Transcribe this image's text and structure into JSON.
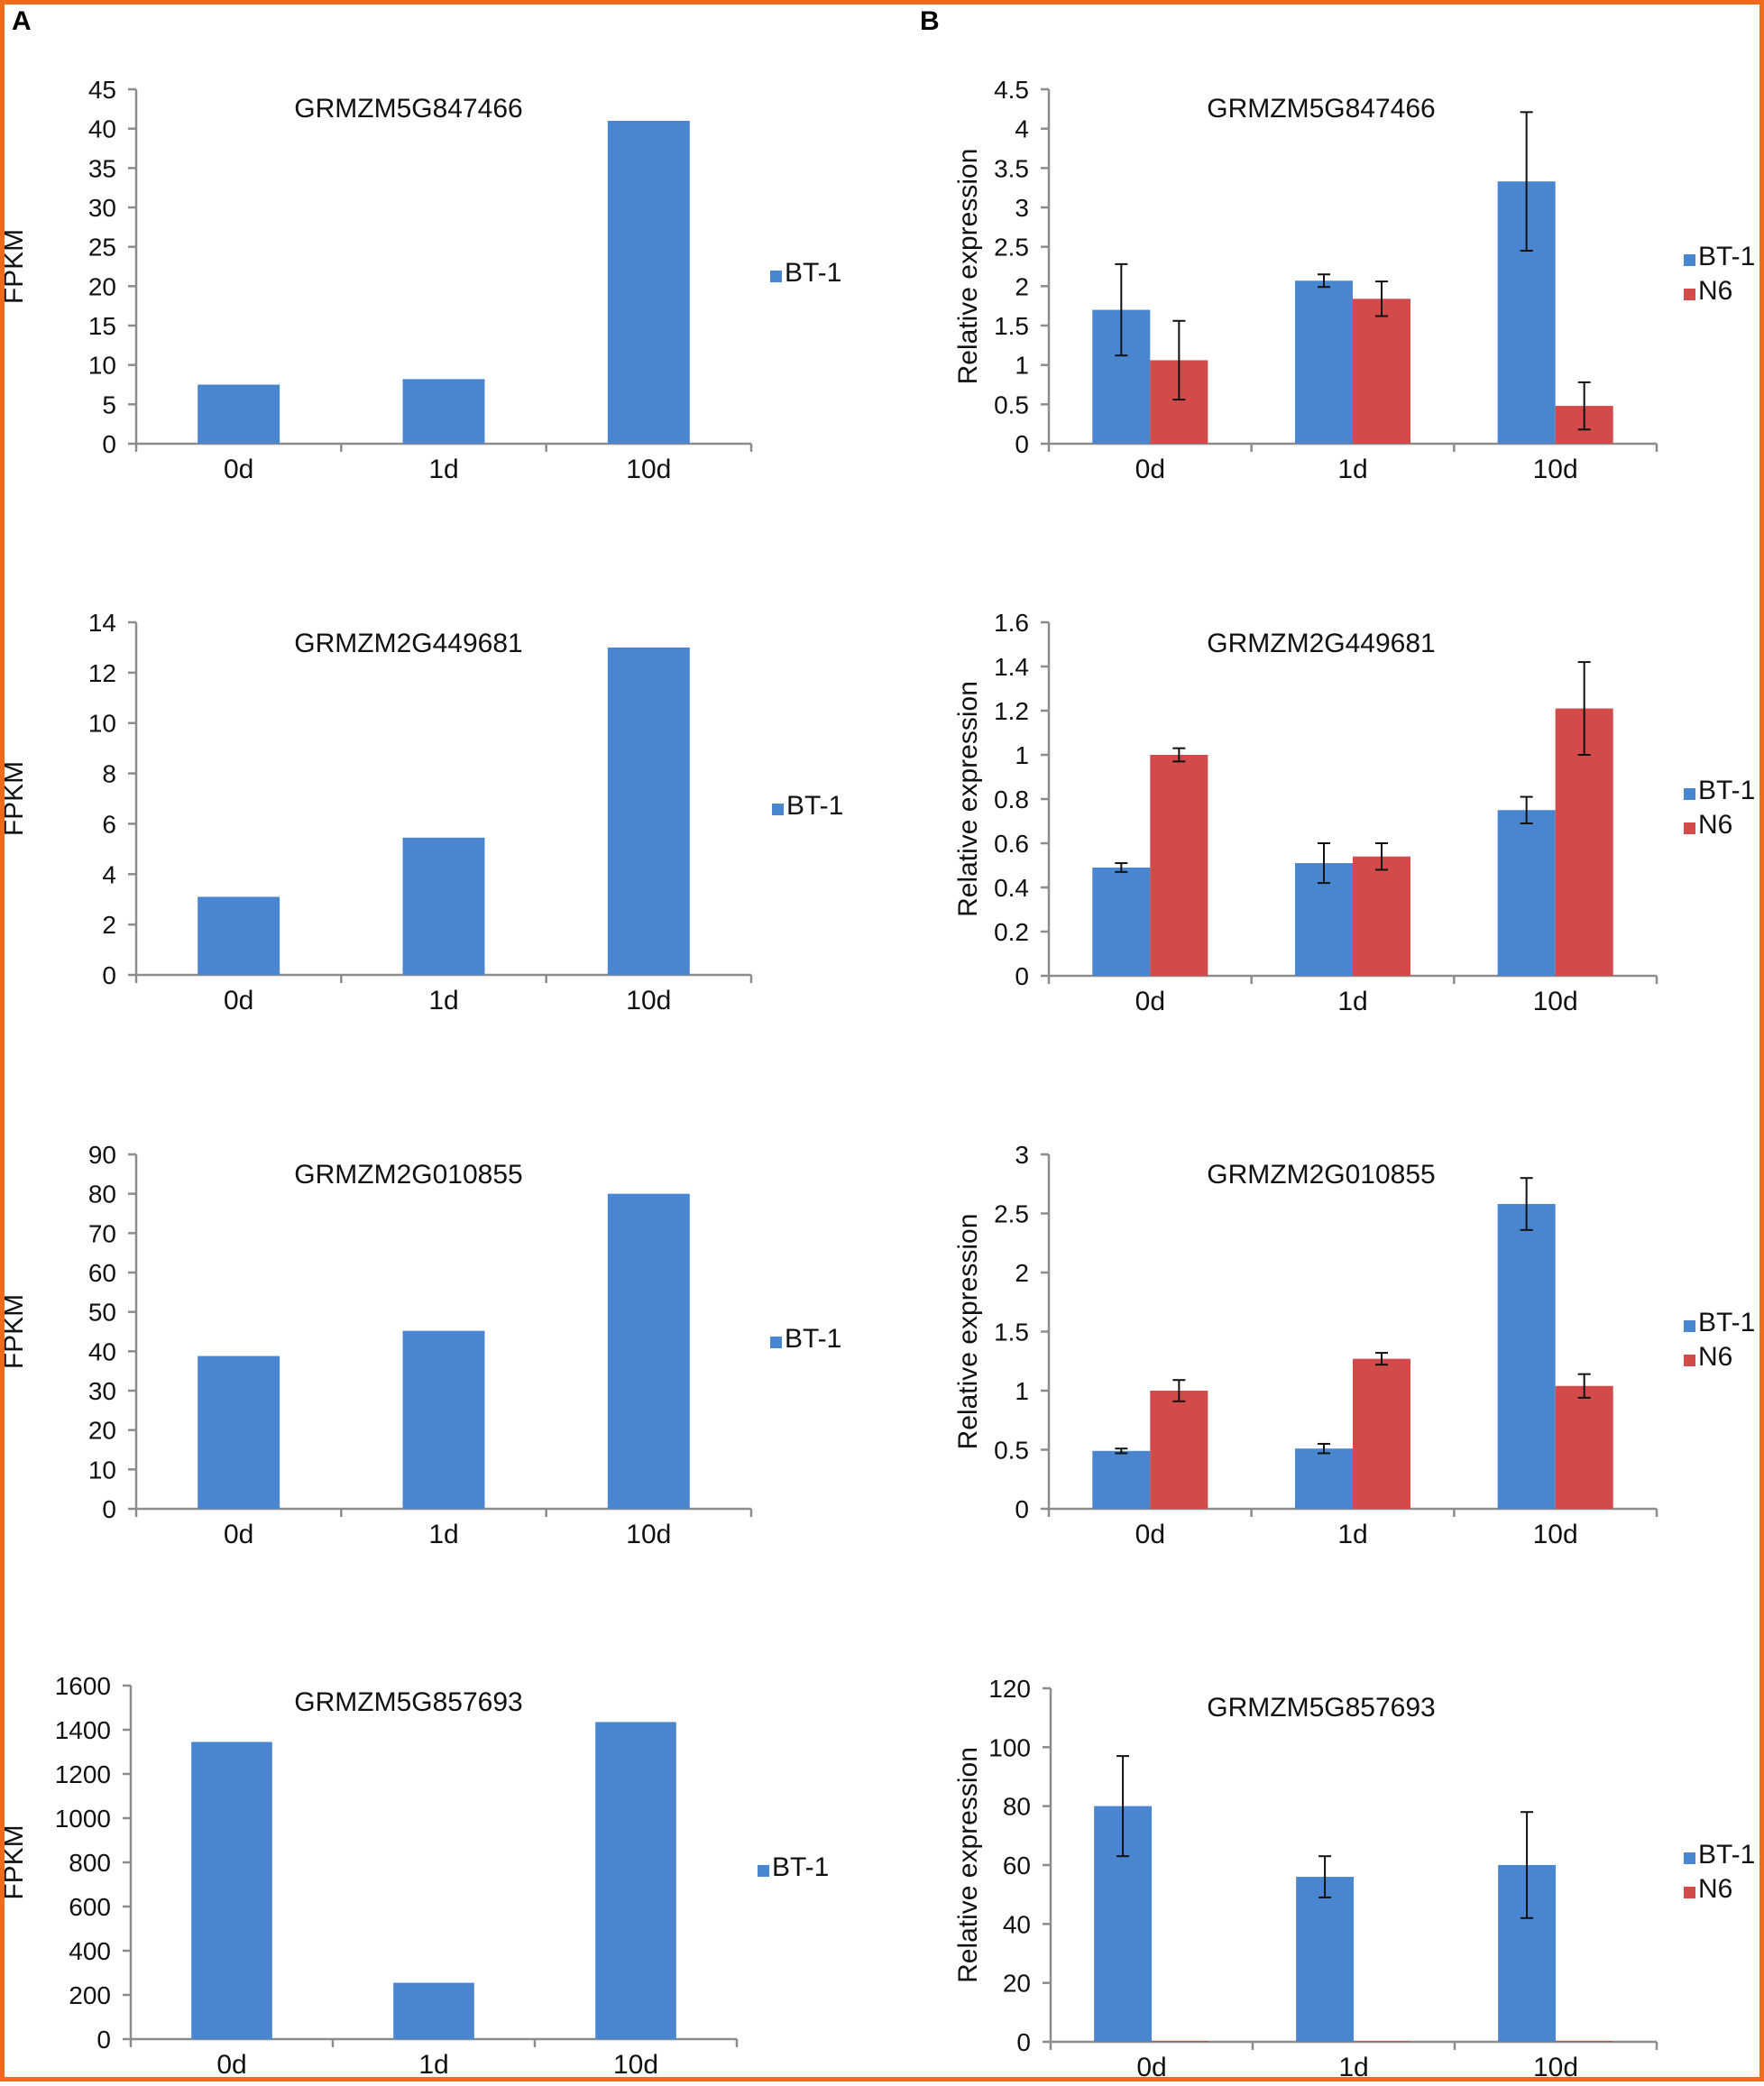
{
  "panel_labels": {
    "a": "A",
    "b": "B"
  },
  "colors": {
    "BT-1": "#4a86cf",
    "N6": "#d24a4a",
    "axis": "#8c8c8c",
    "border": "#ee6a1c"
  },
  "chart_data": [
    {
      "id": "a1",
      "type": "bar",
      "title": "GRMZM5G847466",
      "xlabel": "",
      "ylabel": "FPKM",
      "categories": [
        "0d",
        "1d",
        "10d"
      ],
      "yticks": [
        "0",
        "5",
        "10",
        "15",
        "20",
        "25",
        "30",
        "35",
        "40",
        "45"
      ],
      "ylim": [
        0,
        45
      ],
      "series": [
        {
          "name": "BT-1",
          "values": [
            7.5,
            8.2,
            41
          ]
        }
      ]
    },
    {
      "id": "a2",
      "type": "bar",
      "title": "GRMZM2G449681",
      "xlabel": "",
      "ylabel": "FPKM",
      "categories": [
        "0d",
        "1d",
        "10d"
      ],
      "yticks": [
        "0",
        "2",
        "4",
        "6",
        "8",
        "10",
        "12",
        "14"
      ],
      "ylim": [
        0,
        14
      ],
      "series": [
        {
          "name": "BT-1",
          "values": [
            3.1,
            5.45,
            13
          ]
        }
      ]
    },
    {
      "id": "a3",
      "type": "bar",
      "title": "GRMZM2G010855",
      "xlabel": "",
      "ylabel": "FPKM",
      "categories": [
        "0d",
        "1d",
        "10d"
      ],
      "yticks": [
        "0",
        "10",
        "20",
        "30",
        "40",
        "50",
        "60",
        "70",
        "80",
        "90"
      ],
      "ylim": [
        0,
        90
      ],
      "series": [
        {
          "name": "BT-1",
          "values": [
            38.8,
            45.2,
            80
          ]
        }
      ]
    },
    {
      "id": "a4",
      "type": "bar",
      "title": "GRMZM5G857693",
      "xlabel": "",
      "ylabel": "FPKM",
      "categories": [
        "0d",
        "1d",
        "10d"
      ],
      "yticks": [
        "0",
        "200",
        "400",
        "600",
        "800",
        "1000",
        "1200",
        "1400",
        "1600"
      ],
      "ylim": [
        0,
        1600
      ],
      "series": [
        {
          "name": "BT-1",
          "values": [
            1345,
            255,
            1435
          ]
        }
      ]
    },
    {
      "id": "b1",
      "type": "bar",
      "title": "GRMZM5G847466",
      "xlabel": "",
      "ylabel": "Relative expression",
      "categories": [
        "0d",
        "1d",
        "10d"
      ],
      "yticks": [
        "0",
        "0.5",
        "1",
        "1.5",
        "2",
        "2.5",
        "3",
        "3.5",
        "4",
        "4.5"
      ],
      "ylim": [
        0,
        4.5
      ],
      "series": [
        {
          "name": "BT-1",
          "values": [
            1.7,
            2.07,
            3.33
          ],
          "errors": [
            0.58,
            0.08,
            0.88
          ]
        },
        {
          "name": "N6",
          "values": [
            1.06,
            1.84,
            0.48
          ],
          "errors": [
            0.5,
            0.22,
            0.3
          ]
        }
      ]
    },
    {
      "id": "b2",
      "type": "bar",
      "title": "GRMZM2G449681",
      "xlabel": "",
      "ylabel": "Relative expression",
      "categories": [
        "0d",
        "1d",
        "10d"
      ],
      "yticks": [
        "0",
        "0.2",
        "0.4",
        "0.6",
        "0.8",
        "1",
        "1.2",
        "1.4",
        "1.6"
      ],
      "ylim": [
        0,
        1.6
      ],
      "series": [
        {
          "name": "BT-1",
          "values": [
            0.49,
            0.51,
            0.75
          ],
          "errors": [
            0.02,
            0.09,
            0.06
          ]
        },
        {
          "name": "N6",
          "values": [
            1.0,
            0.54,
            1.21
          ],
          "errors": [
            0.03,
            0.06,
            0.21
          ]
        }
      ]
    },
    {
      "id": "b3",
      "type": "bar",
      "title": "GRMZM2G010855",
      "xlabel": "",
      "ylabel": "Relative expression",
      "categories": [
        "0d",
        "1d",
        "10d"
      ],
      "yticks": [
        "0",
        "0.5",
        "1",
        "1.5",
        "2",
        "2.5",
        "3"
      ],
      "ylim": [
        0,
        3
      ],
      "series": [
        {
          "name": "BT-1",
          "values": [
            0.49,
            0.51,
            2.58
          ],
          "errors": [
            0.02,
            0.04,
            0.22
          ]
        },
        {
          "name": "N6",
          "values": [
            1.0,
            1.27,
            1.04
          ],
          "errors": [
            0.09,
            0.05,
            0.1
          ]
        }
      ]
    },
    {
      "id": "b4",
      "type": "bar",
      "title": "GRMZM5G857693",
      "xlabel": "",
      "ylabel": "Relative expression",
      "categories": [
        "0d",
        "1d",
        "10d"
      ],
      "yticks": [
        "0",
        "20",
        "40",
        "60",
        "80",
        "100",
        "120"
      ],
      "ylim": [
        0,
        120
      ],
      "series": [
        {
          "name": "BT-1",
          "values": [
            80,
            56,
            60
          ],
          "errors": [
            17,
            7,
            18
          ]
        },
        {
          "name": "N6",
          "values": [
            0.3,
            0.2,
            0.3
          ],
          "errors": [
            0,
            0,
            0
          ]
        }
      ]
    }
  ]
}
